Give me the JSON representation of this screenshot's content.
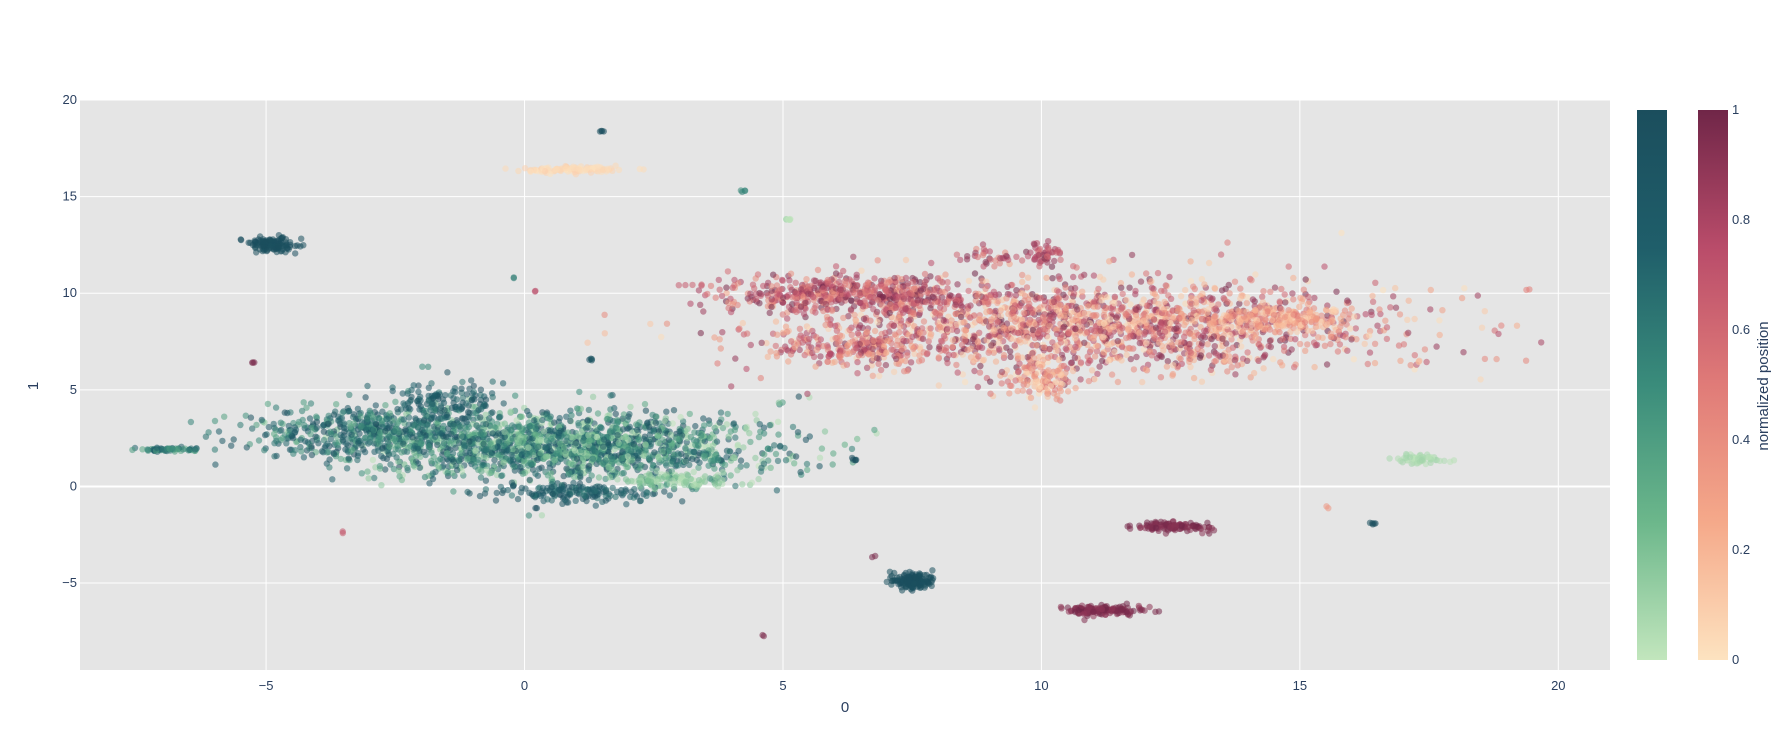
{
  "chart_data": {
    "type": "scatter",
    "title": "",
    "xlabel": "0",
    "ylabel": "1",
    "xlim": [
      -8.6,
      21.0
    ],
    "ylim": [
      -9.5,
      20.0
    ],
    "x_ticks": [
      -5,
      0,
      5,
      10,
      15,
      20
    ],
    "y_ticks": [
      -5,
      0,
      5,
      10,
      15,
      20
    ],
    "grid": true,
    "plot_background": "#e5e5e5",
    "colorbars": [
      {
        "name": "green-teal scale",
        "title": "",
        "colors": [
          "#c2e6bd",
          "#6cb78b",
          "#3a8c7b",
          "#1f5e6a",
          "#1b4e5d"
        ],
        "range": [
          0,
          1
        ],
        "ticks": []
      },
      {
        "name": "peach-burgundy scale",
        "title": "normalized position",
        "colors": [
          "#fde3c0",
          "#f5a98a",
          "#e07b78",
          "#b94c6a",
          "#702648"
        ],
        "range": [
          0,
          1
        ],
        "ticks": [
          "0",
          "0.2",
          "0.4",
          "0.6",
          "0.8",
          "1"
        ]
      }
    ],
    "series": [
      {
        "scale": "green",
        "clusters": [
          {
            "x": 0.8,
            "y": 2.1,
            "sx": 1.9,
            "sy": 0.9,
            "n": 1700,
            "c": [
              0.0,
              1.0
            ]
          },
          {
            "x": -3.0,
            "y": 2.8,
            "sx": 1.2,
            "sy": 0.7,
            "n": 500,
            "c": [
              0.3,
              1.0
            ]
          },
          {
            "x": -1.5,
            "y": 4.5,
            "sx": 0.5,
            "sy": 0.5,
            "n": 120,
            "c": [
              0.6,
              1.0
            ]
          },
          {
            "x": 1.0,
            "y": -0.3,
            "sx": 0.8,
            "sy": 0.25,
            "n": 160,
            "c": [
              0.6,
              1.0
            ]
          },
          {
            "x": 2.8,
            "y": 0.3,
            "sx": 0.6,
            "sy": 0.2,
            "n": 90,
            "c": [
              0.0,
              0.25
            ]
          },
          {
            "x": 3.6,
            "y": 1.4,
            "sx": 0.15,
            "sy": 0.15,
            "n": 10,
            "c": [
              0.3,
              0.6
            ]
          },
          {
            "x": -6.9,
            "y": 1.9,
            "sx": 0.3,
            "sy": 0.05,
            "n": 60,
            "c": [
              0.3,
              0.8
            ]
          },
          {
            "x": -4.9,
            "y": 12.5,
            "sx": 0.25,
            "sy": 0.2,
            "n": 120,
            "c": [
              0.95,
              1.0
            ]
          },
          {
            "x": 7.5,
            "y": -4.9,
            "sx": 0.2,
            "sy": 0.2,
            "n": 140,
            "c": [
              0.95,
              1.0
            ]
          },
          {
            "x": 17.3,
            "y": 1.4,
            "sx": 0.25,
            "sy": 0.12,
            "n": 60,
            "c": [
              0.0,
              0.1
            ]
          },
          {
            "x": 5.1,
            "y": 13.8,
            "sx": 0.06,
            "sy": 0.04,
            "n": 6,
            "c": [
              0.0,
              0.1
            ]
          },
          {
            "x": 1.5,
            "y": 18.4,
            "sx": 0.03,
            "sy": 0.03,
            "n": 4,
            "c": [
              0.95,
              1.0
            ]
          },
          {
            "x": 4.2,
            "y": 15.3,
            "sx": 0.05,
            "sy": 0.04,
            "n": 4,
            "c": [
              0.5,
              0.6
            ]
          },
          {
            "x": 6.4,
            "y": 1.4,
            "sx": 0.04,
            "sy": 0.04,
            "n": 5,
            "c": [
              0.95,
              1.0
            ]
          },
          {
            "x": 16.4,
            "y": -1.9,
            "sx": 0.04,
            "sy": 0.04,
            "n": 5,
            "c": [
              0.95,
              1.0
            ]
          },
          {
            "x": 1.3,
            "y": 6.6,
            "sx": 0.04,
            "sy": 0.04,
            "n": 4,
            "c": [
              0.85,
              1.0
            ]
          },
          {
            "x": -0.2,
            "y": 10.8,
            "sx": 0.02,
            "sy": 0.02,
            "n": 2,
            "c": [
              0.5,
              0.6
            ]
          },
          {
            "x": -1.9,
            "y": 6.2,
            "sx": 0.03,
            "sy": 0.03,
            "n": 2,
            "c": [
              0.5,
              0.6
            ]
          },
          {
            "x": 0.2,
            "y": -1.1,
            "sx": 0.03,
            "sy": 0.03,
            "n": 2,
            "c": [
              0.95,
              1.0
            ]
          }
        ]
      },
      {
        "scale": "red",
        "clusters": [
          {
            "x": 11.2,
            "y": 8.3,
            "sx": 2.7,
            "sy": 1.2,
            "n": 1800,
            "c": [
              0.0,
              1.0
            ]
          },
          {
            "x": 6.2,
            "y": 9.9,
            "sx": 1.2,
            "sy": 0.5,
            "n": 500,
            "c": [
              0.35,
              1.0
            ]
          },
          {
            "x": 6.5,
            "y": 7.2,
            "sx": 1.0,
            "sy": 0.5,
            "n": 220,
            "c": [
              0.2,
              0.9
            ]
          },
          {
            "x": 10.0,
            "y": 12.0,
            "sx": 0.2,
            "sy": 0.3,
            "n": 50,
            "c": [
              0.5,
              1.0
            ]
          },
          {
            "x": 9.0,
            "y": 11.9,
            "sx": 0.3,
            "sy": 0.2,
            "n": 30,
            "c": [
              0.4,
              1.0
            ]
          },
          {
            "x": 14.6,
            "y": 8.6,
            "sx": 0.6,
            "sy": 0.3,
            "n": 200,
            "c": [
              0.05,
              0.5
            ]
          },
          {
            "x": 10.0,
            "y": 5.5,
            "sx": 0.3,
            "sy": 0.5,
            "n": 100,
            "c": [
              0.0,
              0.6
            ]
          },
          {
            "x": 0.9,
            "y": 16.4,
            "sx": 0.5,
            "sy": 0.08,
            "n": 110,
            "c": [
              0.0,
              0.08
            ]
          },
          {
            "x": 12.5,
            "y": -2.1,
            "sx": 0.35,
            "sy": 0.12,
            "n": 110,
            "c": [
              0.9,
              1.0
            ]
          },
          {
            "x": 11.2,
            "y": -6.4,
            "sx": 0.4,
            "sy": 0.12,
            "n": 140,
            "c": [
              0.88,
              1.0
            ]
          },
          {
            "x": 3.2,
            "y": 10.4,
            "sx": 0.15,
            "sy": 0.04,
            "n": 5,
            "c": [
              0.6,
              0.7
            ]
          },
          {
            "x": 19.4,
            "y": 10.2,
            "sx": 0.03,
            "sy": 0.03,
            "n": 2,
            "c": [
              0.4,
              0.5
            ]
          },
          {
            "x": 18.2,
            "y": 10.3,
            "sx": 0.03,
            "sy": 0.03,
            "n": 1,
            "c": [
              0.0,
              0.1
            ]
          },
          {
            "x": 16.5,
            "y": 6.4,
            "sx": 0.03,
            "sy": 0.03,
            "n": 1,
            "c": [
              0.25,
              0.35
            ]
          },
          {
            "x": 15.5,
            "y": -1.1,
            "sx": 0.03,
            "sy": 0.03,
            "n": 2,
            "c": [
              0.3,
              0.4
            ]
          },
          {
            "x": 13.1,
            "y": 6.7,
            "sx": 0.03,
            "sy": 0.03,
            "n": 2,
            "c": [
              0.95,
              1.0
            ]
          },
          {
            "x": -5.2,
            "y": 6.4,
            "sx": 0.03,
            "sy": 0.03,
            "n": 3,
            "c": [
              0.95,
              1.0
            ]
          },
          {
            "x": 0.2,
            "y": 10.1,
            "sx": 0.02,
            "sy": 0.02,
            "n": 2,
            "c": [
              0.7,
              0.8
            ]
          },
          {
            "x": -3.5,
            "y": -2.4,
            "sx": 0.03,
            "sy": 0.03,
            "n": 2,
            "c": [
              0.6,
              0.7
            ]
          },
          {
            "x": 6.8,
            "y": -3.6,
            "sx": 0.03,
            "sy": 0.03,
            "n": 2,
            "c": [
              0.95,
              1.0
            ]
          },
          {
            "x": 4.6,
            "y": -7.7,
            "sx": 0.03,
            "sy": 0.03,
            "n": 2,
            "c": [
              0.95,
              1.0
            ]
          }
        ]
      }
    ]
  }
}
